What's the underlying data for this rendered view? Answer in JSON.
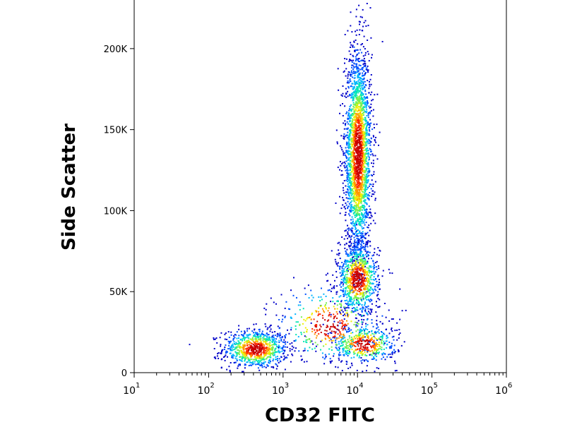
{
  "chart_data": {
    "type": "scatter",
    "title": "",
    "xlabel": "CD32 FITC",
    "ylabel": "Side Scatter",
    "x_scale": "log",
    "xlim": [
      10,
      1000000
    ],
    "ylim": [
      0,
      230000
    ],
    "x_ticks": [
      {
        "value": 10,
        "base": "10",
        "exp": "1"
      },
      {
        "value": 100,
        "base": "10",
        "exp": "2"
      },
      {
        "value": 1000,
        "base": "10",
        "exp": "3"
      },
      {
        "value": 10000,
        "base": "10",
        "exp": "4"
      },
      {
        "value": 100000,
        "base": "10",
        "exp": "5"
      },
      {
        "value": 1000000,
        "base": "10",
        "exp": "6"
      }
    ],
    "y_ticks": [
      {
        "value": 0,
        "label": "0"
      },
      {
        "value": 50000,
        "label": "50K"
      },
      {
        "value": 100000,
        "label": "100K"
      },
      {
        "value": 150000,
        "label": "150K"
      },
      {
        "value": 200000,
        "label": "200K"
      }
    ],
    "color_scale": [
      "#0000c8",
      "#0050ff",
      "#00b4ff",
      "#00e6b4",
      "#78f050",
      "#f0f000",
      "#ff9600",
      "#ff2800",
      "#c80000"
    ],
    "populations": [
      {
        "x_center": 420,
        "x_spread_decades": 0.22,
        "y_center": 15000,
        "y_spread": 6000,
        "count": 900
      },
      {
        "x_center": 10000,
        "x_spread_decades": 0.09,
        "y_center": 135000,
        "y_spread": 32000,
        "count": 2600
      },
      {
        "x_center": 10000,
        "x_spread_decades": 0.14,
        "y_center": 58000,
        "y_spread": 11000,
        "count": 900
      },
      {
        "x_center": 12000,
        "x_spread_decades": 0.22,
        "y_center": 18000,
        "y_spread": 6000,
        "count": 500
      },
      {
        "x_center": 4000,
        "x_spread_decades": 0.35,
        "y_center": 30000,
        "y_spread": 12000,
        "count": 400
      }
    ],
    "grid": false,
    "legend": "none"
  }
}
